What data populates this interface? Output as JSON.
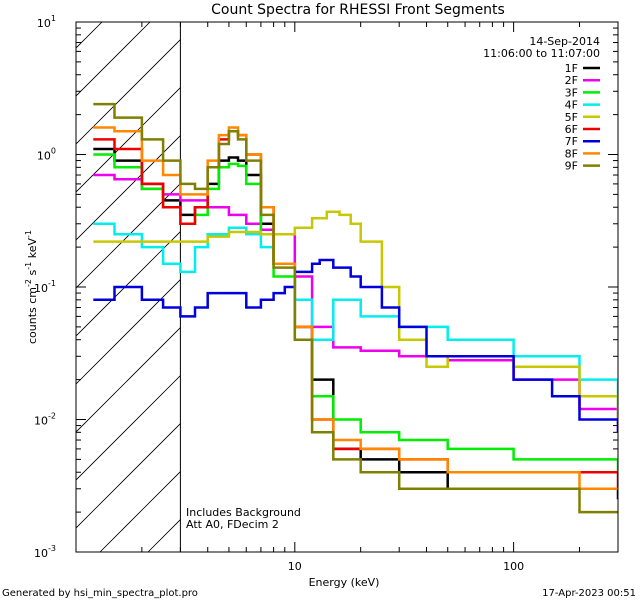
{
  "chart_data": {
    "type": "line",
    "title": "Count Spectra for RHESSI Front Segments",
    "xlabel": "Energy (keV)",
    "ylabel": {
      "base": "counts cm",
      "exp1": "-2",
      "mid1": " s",
      "exp2": "-1",
      "mid2": " keV",
      "exp3": "-1"
    },
    "x_scale": "log",
    "y_scale": "log",
    "xlim": [
      1.0,
      300.0
    ],
    "ylim": [
      0.001,
      10.0
    ],
    "x_ticks": [
      {
        "value": 10,
        "label": "10"
      },
      {
        "value": 100,
        "label": "100"
      }
    ],
    "y_ticks": [
      {
        "value": 0.001,
        "base": "10",
        "exp": "-3"
      },
      {
        "value": 0.01,
        "base": "10",
        "exp": "-2"
      },
      {
        "value": 0.1,
        "base": "10",
        "exp": "-1"
      },
      {
        "value": 1,
        "base": "10",
        "exp": "0"
      },
      {
        "value": 10,
        "base": "10",
        "exp": "1"
      }
    ],
    "hatched_region": {
      "x_from": 1.0,
      "x_to": 3.0
    },
    "date": "14-Sep-2014",
    "time_range": "11:06:00 to 11:07:00",
    "annotations": [
      "Includes Background",
      "Att A0, FDecim 2"
    ],
    "footer_left": "Generated by hsi_min_spectra_plot.pro",
    "footer_right": "17-Apr-2023 00:51",
    "series": [
      {
        "name": "1F",
        "color": "#000000",
        "energy": [
          1.2,
          1.5,
          2,
          2.5,
          3,
          3.5,
          4,
          4.5,
          5,
          5.5,
          6,
          7,
          8,
          10,
          12,
          15,
          20,
          30,
          50,
          100,
          200,
          300
        ],
        "values": [
          1.1,
          0.9,
          0.6,
          0.45,
          0.35,
          0.4,
          0.6,
          0.9,
          0.95,
          0.9,
          0.7,
          0.3,
          0.15,
          0.05,
          0.02,
          0.006,
          0.005,
          0.004,
          0.003,
          0.003,
          0.003,
          0.0025
        ]
      },
      {
        "name": "2F",
        "color": "#ee00ee",
        "energy": [
          1.2,
          1.5,
          2,
          2.5,
          3,
          3.5,
          4,
          5,
          6,
          7,
          8,
          10,
          12,
          15,
          20,
          30,
          50,
          100,
          200,
          300
        ],
        "values": [
          0.7,
          0.65,
          0.55,
          0.5,
          0.45,
          0.45,
          0.4,
          0.35,
          0.3,
          0.27,
          0.25,
          0.12,
          0.05,
          0.035,
          0.033,
          0.03,
          0.028,
          0.02,
          0.012,
          0.008
        ]
      },
      {
        "name": "3F",
        "color": "#00ee00",
        "energy": [
          1.2,
          1.5,
          2,
          2.5,
          3,
          3.5,
          4,
          4.5,
          5,
          5.5,
          6,
          7,
          8,
          10,
          12,
          15,
          20,
          30,
          50,
          100,
          200,
          300
        ],
        "values": [
          1.0,
          0.8,
          0.55,
          0.4,
          0.3,
          0.35,
          0.55,
          0.8,
          0.85,
          0.82,
          0.6,
          0.25,
          0.12,
          0.04,
          0.015,
          0.01,
          0.008,
          0.007,
          0.006,
          0.005,
          0.005,
          0.004
        ]
      },
      {
        "name": "4F",
        "color": "#00eeee",
        "energy": [
          1.2,
          1.5,
          2,
          2.5,
          3,
          3.5,
          4,
          5,
          6,
          7,
          8,
          10,
          12,
          15,
          20,
          30,
          50,
          100,
          200,
          300
        ],
        "values": [
          0.3,
          0.25,
          0.2,
          0.15,
          0.13,
          0.2,
          0.25,
          0.28,
          0.25,
          0.2,
          0.15,
          0.08,
          0.04,
          0.08,
          0.06,
          0.05,
          0.04,
          0.03,
          0.02,
          0.012
        ]
      },
      {
        "name": "5F",
        "color": "#c8c800",
        "energy": [
          1.2,
          1.5,
          2,
          2.5,
          3,
          4,
          5,
          6,
          7,
          8,
          10,
          12,
          14,
          16,
          18,
          20,
          25,
          30,
          40,
          50,
          70,
          100,
          200,
          300
        ],
        "values": [
          0.22,
          0.22,
          0.22,
          0.22,
          0.22,
          0.24,
          0.26,
          0.26,
          0.25,
          0.25,
          0.28,
          0.33,
          0.37,
          0.35,
          0.3,
          0.22,
          0.1,
          0.04,
          0.025,
          0.03,
          0.03,
          0.025,
          0.015,
          0.01
        ]
      },
      {
        "name": "6F",
        "color": "#ee0000",
        "energy": [
          1.2,
          1.5,
          2,
          2.5,
          3,
          3.5,
          4,
          4.5,
          5,
          5.5,
          6,
          7,
          8,
          10,
          12,
          15,
          20,
          30,
          50,
          100,
          200,
          300
        ],
        "values": [
          1.3,
          1.1,
          0.6,
          0.4,
          0.3,
          0.4,
          0.8,
          1.3,
          1.5,
          1.4,
          1.0,
          0.4,
          0.15,
          0.05,
          0.01,
          0.006,
          0.006,
          0.005,
          0.004,
          0.004,
          0.004,
          0.003
        ]
      },
      {
        "name": "7F",
        "color": "#0000dd",
        "energy": [
          1.2,
          1.5,
          2,
          2.5,
          3,
          3.5,
          4,
          5,
          6,
          7,
          8,
          9,
          10,
          12,
          13,
          15,
          18,
          20,
          25,
          30,
          40,
          50,
          70,
          100,
          150,
          200,
          300
        ],
        "values": [
          0.08,
          0.1,
          0.08,
          0.07,
          0.06,
          0.07,
          0.09,
          0.09,
          0.07,
          0.08,
          0.09,
          0.1,
          0.13,
          0.15,
          0.16,
          0.14,
          0.12,
          0.1,
          0.07,
          0.05,
          0.03,
          0.03,
          0.03,
          0.02,
          0.015,
          0.01,
          0.008
        ]
      },
      {
        "name": "8F",
        "color": "#ff8800",
        "energy": [
          1.2,
          1.5,
          2,
          2.5,
          3,
          3.5,
          4,
          4.5,
          5,
          5.5,
          6,
          7,
          8,
          10,
          12,
          15,
          20,
          30,
          50,
          100,
          200,
          300
        ],
        "values": [
          1.6,
          1.5,
          0.9,
          0.7,
          0.5,
          0.5,
          0.9,
          1.4,
          1.6,
          1.4,
          1.0,
          0.4,
          0.15,
          0.05,
          0.01,
          0.007,
          0.006,
          0.005,
          0.004,
          0.004,
          0.003,
          0.003
        ]
      },
      {
        "name": "9F",
        "color": "#808000",
        "energy": [
          1.2,
          1.5,
          2,
          2.5,
          3,
          3.5,
          4,
          4.5,
          5,
          5.5,
          6,
          7,
          8,
          10,
          12,
          15,
          20,
          30,
          50,
          100,
          200,
          300
        ],
        "values": [
          2.4,
          1.9,
          1.3,
          0.9,
          0.6,
          0.55,
          0.8,
          1.2,
          1.5,
          1.3,
          0.9,
          0.35,
          0.14,
          0.04,
          0.008,
          0.005,
          0.004,
          0.003,
          0.003,
          0.003,
          0.002,
          0.002
        ]
      }
    ]
  }
}
